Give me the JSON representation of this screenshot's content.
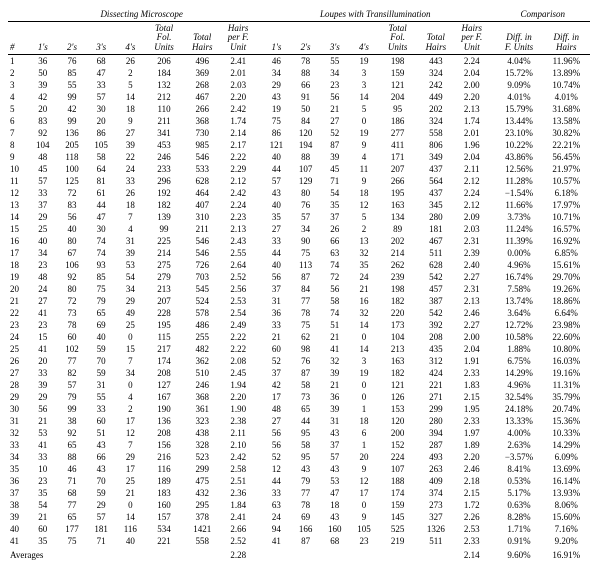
{
  "groups": {
    "g1": "Dissecting Microscope",
    "g2": "Loupes with Transillumination",
    "g3": "Comparison"
  },
  "columns": {
    "idx": "#",
    "c1": "1's",
    "c2": "2's",
    "c3": "3's",
    "c4": "4's",
    "tfu": "Total\nFol.\nUnits",
    "th": "Total\nHairs",
    "hpf": "Hairs\nper F.\nUnit",
    "dfu": "Diff. in\nF. Units",
    "dh": "Diff. in\nHairs"
  },
  "rows": [
    {
      "n": "1",
      "a": [
        "36",
        "76",
        "68",
        "26",
        "206",
        "496",
        "2.41"
      ],
      "b": [
        "46",
        "78",
        "55",
        "19",
        "198",
        "443",
        "2.24"
      ],
      "c": [
        "4.04%",
        "11.96%"
      ]
    },
    {
      "n": "2",
      "a": [
        "50",
        "85",
        "47",
        "2",
        "184",
        "369",
        "2.01"
      ],
      "b": [
        "34",
        "88",
        "34",
        "3",
        "159",
        "324",
        "2.04"
      ],
      "c": [
        "15.72%",
        "13.89%"
      ]
    },
    {
      "n": "3",
      "a": [
        "39",
        "55",
        "33",
        "5",
        "132",
        "268",
        "2.03"
      ],
      "b": [
        "29",
        "66",
        "23",
        "3",
        "121",
        "242",
        "2.00"
      ],
      "c": [
        "9.09%",
        "10.74%"
      ]
    },
    {
      "n": "4",
      "a": [
        "42",
        "99",
        "57",
        "14",
        "212",
        "467",
        "2.20"
      ],
      "b": [
        "43",
        "91",
        "56",
        "14",
        "204",
        "449",
        "2.20"
      ],
      "c": [
        "4.01%",
        "4.01%"
      ]
    },
    {
      "n": "5",
      "a": [
        "20",
        "42",
        "30",
        "18",
        "110",
        "266",
        "2.42"
      ],
      "b": [
        "19",
        "50",
        "21",
        "5",
        "95",
        "202",
        "2.13"
      ],
      "c": [
        "15.79%",
        "31.68%"
      ]
    },
    {
      "n": "6",
      "a": [
        "83",
        "99",
        "20",
        "9",
        "211",
        "368",
        "1.74"
      ],
      "b": [
        "75",
        "84",
        "27",
        "0",
        "186",
        "324",
        "1.74"
      ],
      "c": [
        "13.44%",
        "13.58%"
      ]
    },
    {
      "n": "7",
      "a": [
        "92",
        "136",
        "86",
        "27",
        "341",
        "730",
        "2.14"
      ],
      "b": [
        "86",
        "120",
        "52",
        "19",
        "277",
        "558",
        "2.01"
      ],
      "c": [
        "23.10%",
        "30.82%"
      ]
    },
    {
      "n": "8",
      "a": [
        "104",
        "205",
        "105",
        "39",
        "453",
        "985",
        "2.17"
      ],
      "b": [
        "121",
        "194",
        "87",
        "9",
        "411",
        "806",
        "1.96"
      ],
      "c": [
        "10.22%",
        "22.21%"
      ]
    },
    {
      "n": "9",
      "a": [
        "48",
        "118",
        "58",
        "22",
        "246",
        "546",
        "2.22"
      ],
      "b": [
        "40",
        "88",
        "39",
        "4",
        "171",
        "349",
        "2.04"
      ],
      "c": [
        "43.86%",
        "56.45%"
      ]
    },
    {
      "n": "10",
      "a": [
        "45",
        "100",
        "64",
        "24",
        "233",
        "533",
        "2.29"
      ],
      "b": [
        "44",
        "107",
        "45",
        "11",
        "207",
        "437",
        "2.11"
      ],
      "c": [
        "12.56%",
        "21.97%"
      ]
    },
    {
      "n": "11",
      "a": [
        "57",
        "125",
        "81",
        "33",
        "296",
        "628",
        "2.12"
      ],
      "b": [
        "57",
        "129",
        "71",
        "9",
        "266",
        "564",
        "2.12"
      ],
      "c": [
        "11.28%",
        "10.57%"
      ]
    },
    {
      "n": "12",
      "a": [
        "33",
        "72",
        "61",
        "26",
        "192",
        "464",
        "2.42"
      ],
      "b": [
        "43",
        "80",
        "54",
        "18",
        "195",
        "437",
        "2.24"
      ],
      "c": [
        "−1.54%",
        "6.18%"
      ]
    },
    {
      "n": "13",
      "a": [
        "37",
        "83",
        "44",
        "18",
        "182",
        "407",
        "2.24"
      ],
      "b": [
        "40",
        "76",
        "35",
        "12",
        "163",
        "345",
        "2.12"
      ],
      "c": [
        "11.66%",
        "17.97%"
      ]
    },
    {
      "n": "14",
      "a": [
        "29",
        "56",
        "47",
        "7",
        "139",
        "310",
        "2.23"
      ],
      "b": [
        "35",
        "57",
        "37",
        "5",
        "134",
        "280",
        "2.09"
      ],
      "c": [
        "3.73%",
        "10.71%"
      ]
    },
    {
      "n": "15",
      "a": [
        "25",
        "40",
        "30",
        "4",
        "99",
        "211",
        "2.13"
      ],
      "b": [
        "27",
        "34",
        "26",
        "2",
        "89",
        "181",
        "2.03"
      ],
      "c": [
        "11.24%",
        "16.57%"
      ]
    },
    {
      "n": "16",
      "a": [
        "40",
        "80",
        "74",
        "31",
        "225",
        "546",
        "2.43"
      ],
      "b": [
        "33",
        "90",
        "66",
        "13",
        "202",
        "467",
        "2.31"
      ],
      "c": [
        "11.39%",
        "16.92%"
      ]
    },
    {
      "n": "17",
      "a": [
        "34",
        "67",
        "74",
        "39",
        "214",
        "546",
        "2.55"
      ],
      "b": [
        "44",
        "75",
        "63",
        "32",
        "214",
        "511",
        "2.39"
      ],
      "c": [
        "0.00%",
        "6.85%"
      ]
    },
    {
      "n": "18",
      "a": [
        "23",
        "106",
        "93",
        "53",
        "275",
        "726",
        "2.64"
      ],
      "b": [
        "40",
        "113",
        "74",
        "35",
        "262",
        "628",
        "2.40"
      ],
      "c": [
        "4.96%",
        "15.61%"
      ]
    },
    {
      "n": "19",
      "a": [
        "48",
        "92",
        "85",
        "54",
        "279",
        "703",
        "2.52"
      ],
      "b": [
        "56",
        "87",
        "72",
        "24",
        "239",
        "542",
        "2.27"
      ],
      "c": [
        "16.74%",
        "29.70%"
      ]
    },
    {
      "n": "20",
      "a": [
        "24",
        "80",
        "75",
        "34",
        "213",
        "545",
        "2.56"
      ],
      "b": [
        "37",
        "84",
        "56",
        "21",
        "198",
        "457",
        "2.31"
      ],
      "c": [
        "7.58%",
        "19.26%"
      ]
    },
    {
      "n": "21",
      "a": [
        "27",
        "72",
        "79",
        "29",
        "207",
        "524",
        "2.53"
      ],
      "b": [
        "31",
        "77",
        "58",
        "16",
        "182",
        "387",
        "2.13"
      ],
      "c": [
        "13.74%",
        "18.86%"
      ]
    },
    {
      "n": "22",
      "a": [
        "41",
        "73",
        "65",
        "49",
        "228",
        "578",
        "2.54"
      ],
      "b": [
        "36",
        "78",
        "74",
        "32",
        "220",
        "542",
        "2.46"
      ],
      "c": [
        "3.64%",
        "6.64%"
      ]
    },
    {
      "n": "23",
      "a": [
        "23",
        "78",
        "69",
        "25",
        "195",
        "486",
        "2.49"
      ],
      "b": [
        "33",
        "75",
        "51",
        "14",
        "173",
        "392",
        "2.27"
      ],
      "c": [
        "12.72%",
        "23.98%"
      ]
    },
    {
      "n": "24",
      "a": [
        "15",
        "60",
        "40",
        "0",
        "115",
        "255",
        "2.22"
      ],
      "b": [
        "21",
        "62",
        "21",
        "0",
        "104",
        "208",
        "2.00"
      ],
      "c": [
        "10.58%",
        "22.60%"
      ]
    },
    {
      "n": "25",
      "a": [
        "41",
        "102",
        "59",
        "15",
        "217",
        "482",
        "2.22"
      ],
      "b": [
        "60",
        "98",
        "41",
        "14",
        "213",
        "435",
        "2.04"
      ],
      "c": [
        "1.88%",
        "10.80%"
      ]
    },
    {
      "n": "26",
      "a": [
        "20",
        "77",
        "70",
        "7",
        "174",
        "362",
        "2.08"
      ],
      "b": [
        "52",
        "76",
        "32",
        "3",
        "163",
        "312",
        "1.91"
      ],
      "c": [
        "6.75%",
        "16.03%"
      ]
    },
    {
      "n": "27",
      "a": [
        "33",
        "82",
        "59",
        "34",
        "208",
        "510",
        "2.45"
      ],
      "b": [
        "37",
        "87",
        "39",
        "19",
        "182",
        "424",
        "2.33"
      ],
      "c": [
        "14.29%",
        "19.16%"
      ]
    },
    {
      "n": "28",
      "a": [
        "39",
        "57",
        "31",
        "0",
        "127",
        "246",
        "1.94"
      ],
      "b": [
        "42",
        "58",
        "21",
        "0",
        "121",
        "221",
        "1.83"
      ],
      "c": [
        "4.96%",
        "11.31%"
      ]
    },
    {
      "n": "29",
      "a": [
        "29",
        "79",
        "55",
        "4",
        "167",
        "368",
        "2.20"
      ],
      "b": [
        "17",
        "73",
        "36",
        "0",
        "126",
        "271",
        "2.15"
      ],
      "c": [
        "32.54%",
        "35.79%"
      ]
    },
    {
      "n": "30",
      "a": [
        "56",
        "99",
        "33",
        "2",
        "190",
        "361",
        "1.90"
      ],
      "b": [
        "48",
        "65",
        "39",
        "1",
        "153",
        "299",
        "1.95"
      ],
      "c": [
        "24.18%",
        "20.74%"
      ]
    },
    {
      "n": "31",
      "a": [
        "21",
        "38",
        "60",
        "17",
        "136",
        "323",
        "2.38"
      ],
      "b": [
        "27",
        "44",
        "31",
        "18",
        "120",
        "280",
        "2.33"
      ],
      "c": [
        "13.33%",
        "15.36%"
      ]
    },
    {
      "n": "32",
      "a": [
        "53",
        "92",
        "51",
        "12",
        "208",
        "438",
        "2.11"
      ],
      "b": [
        "56",
        "95",
        "43",
        "6",
        "200",
        "394",
        "1.97"
      ],
      "c": [
        "4.00%",
        "10.33%"
      ]
    },
    {
      "n": "33",
      "a": [
        "41",
        "65",
        "43",
        "7",
        "156",
        "328",
        "2.10"
      ],
      "b": [
        "56",
        "58",
        "37",
        "1",
        "152",
        "287",
        "1.89"
      ],
      "c": [
        "2.63%",
        "14.29%"
      ]
    },
    {
      "n": "34",
      "a": [
        "33",
        "88",
        "66",
        "29",
        "216",
        "523",
        "2.42"
      ],
      "b": [
        "52",
        "95",
        "57",
        "20",
        "224",
        "493",
        "2.20"
      ],
      "c": [
        "−3.57%",
        "6.09%"
      ]
    },
    {
      "n": "35",
      "a": [
        "10",
        "46",
        "43",
        "17",
        "116",
        "299",
        "2.58"
      ],
      "b": [
        "12",
        "43",
        "43",
        "9",
        "107",
        "263",
        "2.46"
      ],
      "c": [
        "8.41%",
        "13.69%"
      ]
    },
    {
      "n": "36",
      "a": [
        "23",
        "71",
        "70",
        "25",
        "189",
        "475",
        "2.51"
      ],
      "b": [
        "44",
        "79",
        "53",
        "12",
        "188",
        "409",
        "2.18"
      ],
      "c": [
        "0.53%",
        "16.14%"
      ]
    },
    {
      "n": "37",
      "a": [
        "35",
        "68",
        "59",
        "21",
        "183",
        "432",
        "2.36"
      ],
      "b": [
        "33",
        "77",
        "47",
        "17",
        "174",
        "374",
        "2.15"
      ],
      "c": [
        "5.17%",
        "13.93%"
      ]
    },
    {
      "n": "38",
      "a": [
        "54",
        "77",
        "29",
        "0",
        "160",
        "295",
        "1.84"
      ],
      "b": [
        "63",
        "78",
        "18",
        "0",
        "159",
        "273",
        "1.72"
      ],
      "c": [
        "0.63%",
        "8.06%"
      ]
    },
    {
      "n": "39",
      "a": [
        "21",
        "65",
        "57",
        "14",
        "157",
        "378",
        "2.41"
      ],
      "b": [
        "24",
        "69",
        "43",
        "9",
        "145",
        "327",
        "2.26"
      ],
      "c": [
        "8.28%",
        "15.60%"
      ]
    },
    {
      "n": "40",
      "a": [
        "60",
        "177",
        "181",
        "116",
        "534",
        "1421",
        "2.66"
      ],
      "b": [
        "94",
        "166",
        "160",
        "105",
        "525",
        "1326",
        "2.53"
      ],
      "c": [
        "1.71%",
        "7.16%"
      ]
    },
    {
      "n": "41",
      "a": [
        "35",
        "75",
        "71",
        "40",
        "221",
        "558",
        "2.52"
      ],
      "b": [
        "41",
        "87",
        "68",
        "23",
        "219",
        "511",
        "2.33"
      ],
      "c": [
        "0.91%",
        "9.20%"
      ]
    }
  ],
  "averages": {
    "label": "Averages",
    "a": "2.28",
    "b": "2.14",
    "c1": "9.60%",
    "c2": "16.91%"
  },
  "style": {
    "font_family": "Times New Roman, serif",
    "font_size_pt": 7,
    "header_style": "italic",
    "border_color": "#000000",
    "background": "#ffffff",
    "text_color": "#000000"
  }
}
